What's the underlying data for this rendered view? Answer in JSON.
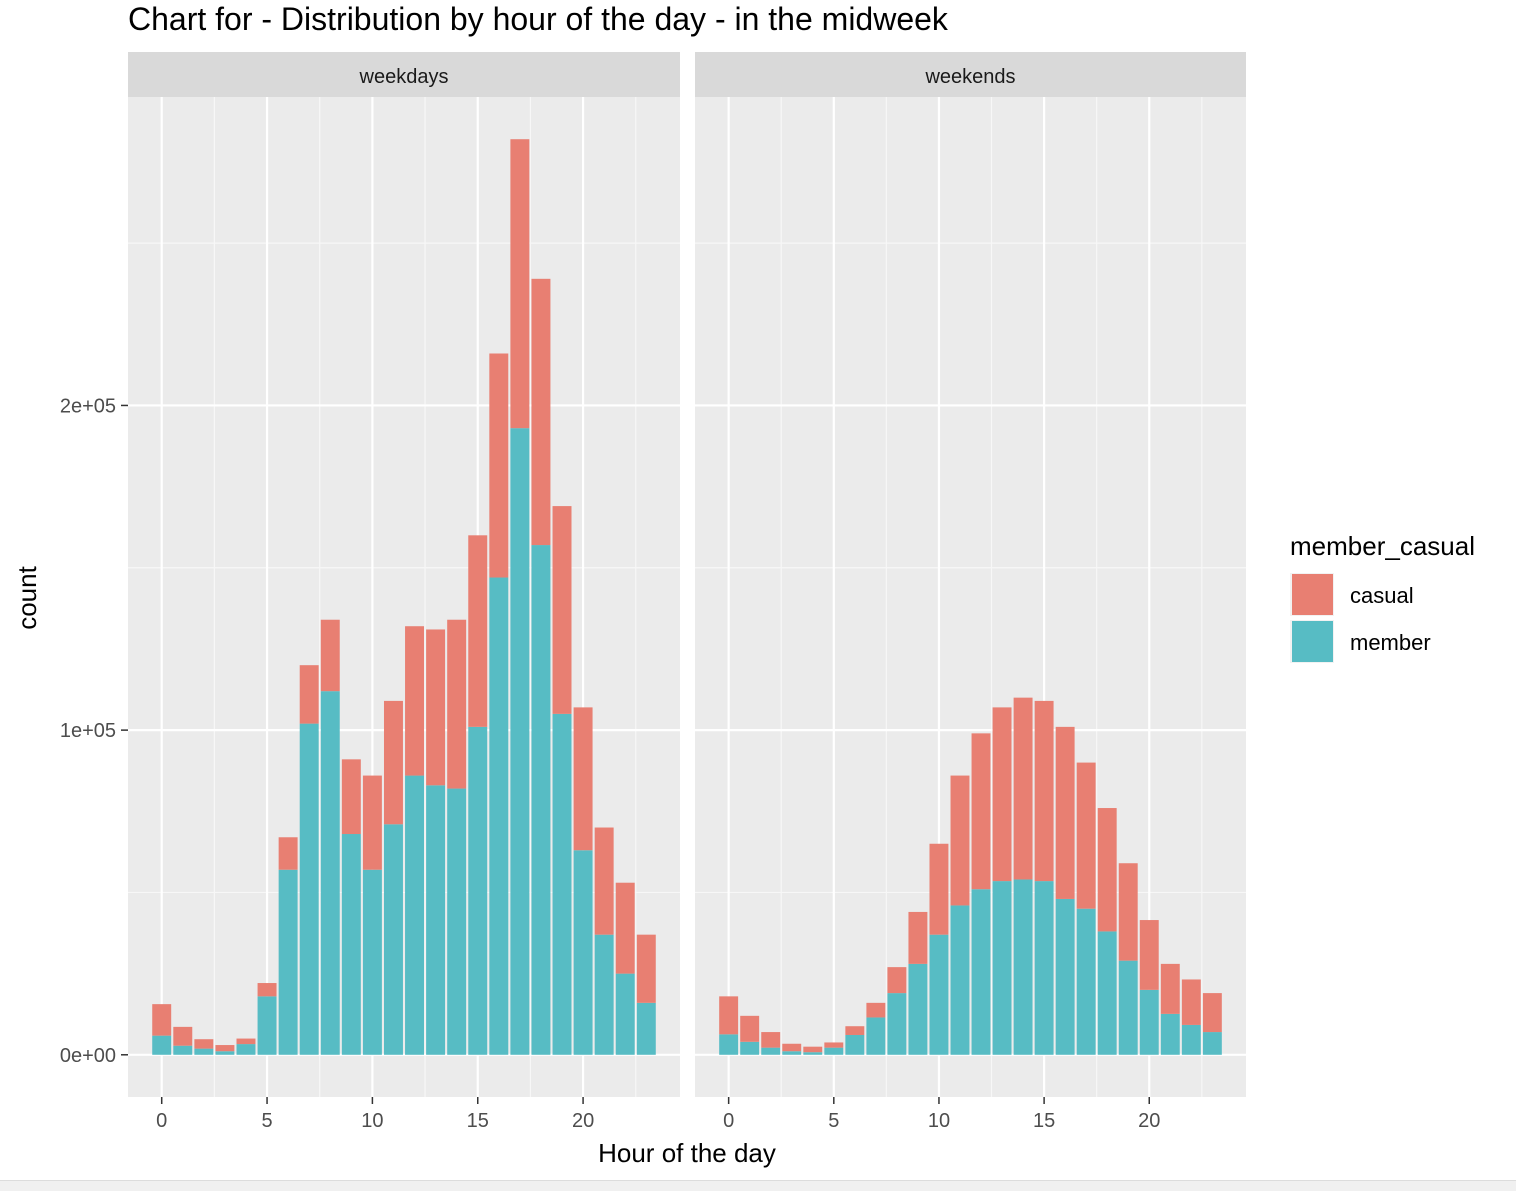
{
  "chart_data": {
    "type": "bar",
    "stacked": true,
    "title": "Chart for - Distribution by hour of the day - in the midweek",
    "xlabel": "Hour of the day",
    "ylabel": "count",
    "legend": {
      "title": "member_casual",
      "placement": "right",
      "entries": [
        {
          "name": "casual",
          "color": "#E87F72"
        },
        {
          "name": "member",
          "color": "#57BCC4"
        }
      ]
    },
    "x_ticks": [
      0,
      5,
      10,
      15,
      20
    ],
    "y_ticks": [
      {
        "value": 0,
        "label": "0e+00"
      },
      {
        "value": 100000,
        "label": "1e+05"
      },
      {
        "value": 200000,
        "label": "2e+05"
      }
    ],
    "xlim": [
      -1.6,
      24.6
    ],
    "ylim": [
      -13000,
      295000
    ],
    "grid": true,
    "panels": [
      {
        "label": "weekdays",
        "hours": [
          0,
          1,
          2,
          3,
          4,
          5,
          6,
          7,
          8,
          9,
          10,
          11,
          12,
          13,
          14,
          15,
          16,
          17,
          18,
          19,
          20,
          21,
          22,
          23
        ],
        "series": [
          {
            "name": "member",
            "values": [
              5900,
              2800,
              1900,
              1100,
              3300,
              18000,
              57000,
              102000,
              112000,
              68000,
              57000,
              71000,
              86000,
              83000,
              82000,
              101000,
              147000,
              193000,
              157000,
              105000,
              63000,
              37000,
              25000,
              16000
            ]
          },
          {
            "name": "casual",
            "values": [
              9700,
              5800,
              2900,
              1900,
              1700,
              4100,
              10000,
              18000,
              22000,
              23000,
              29000,
              38000,
              46000,
              48000,
              52000,
              59000,
              69000,
              89000,
              82000,
              64000,
              44000,
              33000,
              28000,
              21000
            ]
          }
        ]
      },
      {
        "label": "weekends",
        "hours": [
          0,
          1,
          2,
          3,
          4,
          5,
          6,
          7,
          8,
          9,
          10,
          11,
          12,
          13,
          14,
          15,
          16,
          17,
          18,
          19,
          20,
          21,
          22,
          23
        ],
        "series": [
          {
            "name": "member",
            "values": [
              6300,
              4000,
              2200,
              1100,
              800,
              2200,
              6100,
              11500,
              19000,
              28000,
              37000,
              46000,
              51000,
              53500,
              54000,
              53500,
              48000,
              45000,
              38000,
              29000,
              20000,
              12600,
              9200,
              7000
            ]
          },
          {
            "name": "casual",
            "values": [
              11700,
              8000,
              4800,
              2300,
              1700,
              1600,
              2700,
              4500,
              8000,
              16000,
              28000,
              40000,
              48000,
              53500,
              56000,
              55500,
              53000,
              45000,
              38000,
              30000,
              21500,
              15400,
              14000,
              12000
            ]
          }
        ]
      }
    ]
  }
}
